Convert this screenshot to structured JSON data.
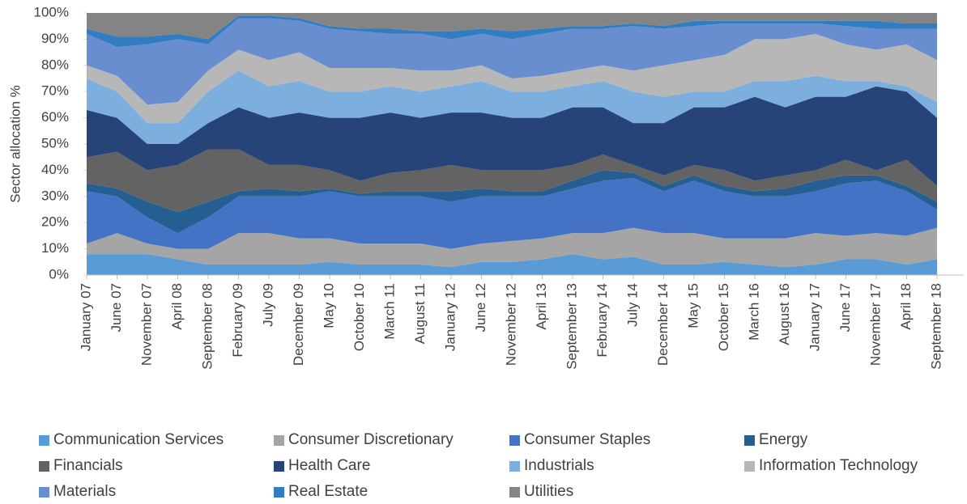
{
  "chart_data": {
    "type": "stacked_area",
    "y_label": "Sector allocation %",
    "categories": [
      "January 07",
      "June 07",
      "November 07",
      "April 08",
      "September 08",
      "February 09",
      "July 09",
      "December 09",
      "May 10",
      "October 10",
      "March 11",
      "August 11",
      "January 12",
      "June 12",
      "November 12",
      "April 13",
      "September 13",
      "February 14",
      "July 14",
      "December 14",
      "May 15",
      "October 15",
      "March 16",
      "August 16",
      "January 17",
      "June 17",
      "November 17",
      "April 18",
      "September 18"
    ],
    "ylim": [
      0,
      100
    ],
    "yticks": [
      {
        "value": 0,
        "label": "0%"
      },
      {
        "value": 10,
        "label": "10%"
      },
      {
        "value": 20,
        "label": "20%"
      },
      {
        "value": 30,
        "label": "30%"
      },
      {
        "value": 40,
        "label": "40%"
      },
      {
        "value": 50,
        "label": "50%"
      },
      {
        "value": 60,
        "label": "60%"
      },
      {
        "value": 70,
        "label": "70%"
      },
      {
        "value": 80,
        "label": "80%"
      },
      {
        "value": 90,
        "label": "90%"
      },
      {
        "value": 100,
        "label": "100%"
      }
    ],
    "series": [
      {
        "name": "Communication Services",
        "color": "#5b9bd5",
        "values": [
          8,
          8,
          8,
          6,
          4,
          4,
          4,
          4,
          5,
          4,
          4,
          4,
          3,
          5,
          5,
          6,
          8,
          6,
          7,
          4,
          4,
          5,
          4,
          3,
          4,
          6,
          6,
          4,
          6
        ]
      },
      {
        "name": "Consumer Discretionary",
        "color": "#a5a5a5",
        "values": [
          4,
          8,
          4,
          4,
          6,
          12,
          12,
          10,
          9,
          8,
          8,
          8,
          7,
          7,
          8,
          8,
          8,
          10,
          11,
          12,
          12,
          9,
          10,
          11,
          12,
          9,
          10,
          11,
          12
        ]
      },
      {
        "name": "Consumer Staples",
        "color": "#4472c4",
        "values": [
          20,
          14,
          10,
          6,
          12,
          14,
          14,
          16,
          18,
          18,
          18,
          18,
          18,
          18,
          17,
          16,
          17,
          20,
          19,
          16,
          20,
          18,
          16,
          16,
          16,
          20,
          20,
          17,
          7
        ]
      },
      {
        "name": "Energy",
        "color": "#255e91",
        "values": [
          3,
          3,
          6,
          8,
          6,
          2,
          3,
          2,
          1,
          1,
          2,
          2,
          4,
          3,
          2,
          2,
          3,
          4,
          2,
          2,
          2,
          2,
          2,
          3,
          4,
          3,
          2,
          2,
          3
        ]
      },
      {
        "name": "Financials",
        "color": "#636363",
        "values": [
          10,
          14,
          12,
          18,
          20,
          16,
          9,
          10,
          7,
          5,
          7,
          8,
          10,
          7,
          8,
          8,
          6,
          6,
          3,
          4,
          4,
          6,
          4,
          5,
          4,
          6,
          2,
          10,
          6
        ]
      },
      {
        "name": "Health Care",
        "color": "#264478",
        "values": [
          18,
          13,
          10,
          8,
          10,
          16,
          18,
          20,
          20,
          24,
          23,
          20,
          20,
          22,
          20,
          20,
          22,
          18,
          16,
          20,
          22,
          24,
          32,
          26,
          28,
          24,
          32,
          26,
          26
        ]
      },
      {
        "name": "Industrials",
        "color": "#7cafdd",
        "values": [
          12,
          10,
          8,
          8,
          12,
          14,
          12,
          12,
          10,
          10,
          10,
          10,
          10,
          12,
          10,
          10,
          8,
          10,
          12,
          10,
          6,
          6,
          6,
          10,
          8,
          6,
          2,
          2,
          6
        ]
      },
      {
        "name": "Information Technology",
        "color": "#b7b7b7",
        "values": [
          5,
          6,
          7,
          8,
          8,
          8,
          10,
          11,
          9,
          9,
          7,
          8,
          6,
          6,
          5,
          6,
          6,
          6,
          8,
          12,
          12,
          14,
          16,
          16,
          16,
          14,
          12,
          16,
          16
        ]
      },
      {
        "name": "Materials",
        "color": "#698ed0",
        "values": [
          12,
          11,
          23,
          24,
          10,
          12,
          16,
          12,
          15,
          14,
          13,
          14,
          12,
          12,
          15,
          16,
          16,
          14,
          17,
          14,
          13,
          12,
          6,
          6,
          4,
          7,
          8,
          6,
          12
        ]
      },
      {
        "name": "Real Estate",
        "color": "#327dc2",
        "values": [
          2,
          4,
          3,
          2,
          2,
          1,
          1,
          1,
          1,
          1,
          2,
          1,
          3,
          2,
          3,
          2,
          1,
          1,
          1,
          1,
          2,
          1,
          1,
          1,
          1,
          2,
          3,
          2,
          2
        ]
      },
      {
        "name": "Utilities",
        "color": "#848484",
        "values": [
          6,
          9,
          9,
          8,
          10,
          1,
          1,
          2,
          5,
          6,
          6,
          7,
          7,
          6,
          7,
          6,
          5,
          5,
          4,
          5,
          3,
          3,
          3,
          3,
          3,
          3,
          3,
          4,
          4
        ]
      }
    ]
  }
}
